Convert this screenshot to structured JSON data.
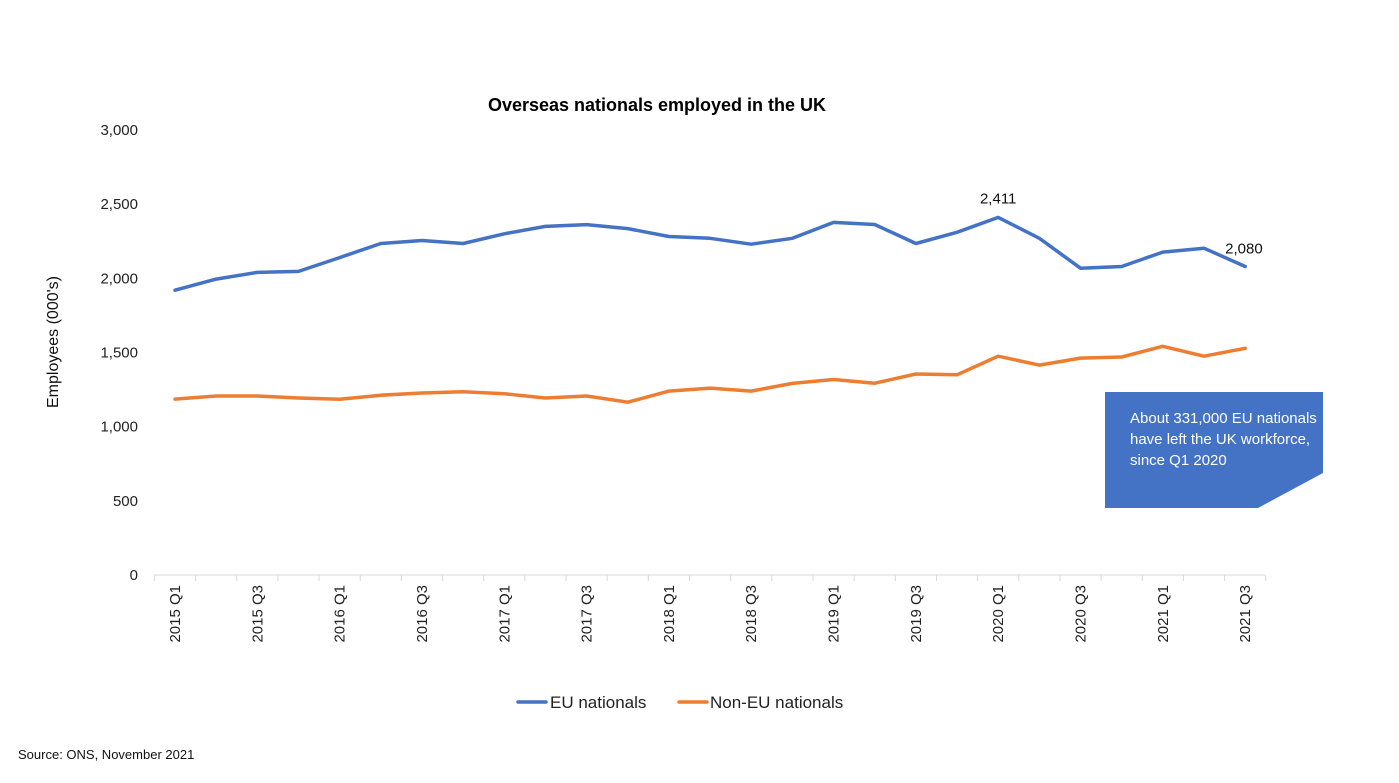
{
  "chart_data": {
    "type": "line",
    "title": "Overseas nationals employed in the UK",
    "ylabel": "Employees (000's)",
    "xlabel": "",
    "ylim": [
      0,
      3000
    ],
    "yticks": [
      0,
      500,
      1000,
      1500,
      2000,
      2500,
      3000
    ],
    "ytick_labels": [
      "0",
      "500",
      "1,000",
      "1,500",
      "2,000",
      "2,500",
      "3,000"
    ],
    "x_labels_shown": [
      "2015 Q1",
      "2015 Q3",
      "2016 Q1",
      "2016 Q3",
      "2017 Q1",
      "2017 Q3",
      "2018 Q1",
      "2018 Q3",
      "2019 Q1",
      "2019 Q3",
      "2020 Q1",
      "2020 Q3",
      "2021 Q1",
      "2021 Q3"
    ],
    "categories": [
      "2015 Q1",
      "2015 Q2",
      "2015 Q3",
      "2015 Q4",
      "2016 Q1",
      "2016 Q2",
      "2016 Q3",
      "2016 Q4",
      "2017 Q1",
      "2017 Q2",
      "2017 Q3",
      "2017 Q4",
      "2018 Q1",
      "2018 Q2",
      "2018 Q3",
      "2018 Q4",
      "2019 Q1",
      "2019 Q2",
      "2019 Q3",
      "2019 Q4",
      "2020 Q1",
      "2020 Q2",
      "2020 Q3",
      "2020 Q4",
      "2021 Q1",
      "2021 Q2",
      "2021 Q3"
    ],
    "grid": false,
    "legend_position": "bottom-center",
    "series": [
      {
        "name": "EU nationals",
        "color": "#4472c4",
        "values": [
          1920,
          1995,
          2040,
          2047,
          2140,
          2235,
          2255,
          2235,
          2300,
          2350,
          2362,
          2335,
          2282,
          2270,
          2230,
          2270,
          2377,
          2363,
          2235,
          2310,
          2411,
          2270,
          2068,
          2080,
          2177,
          2203,
          2080
        ]
      },
      {
        "name": "Non-EU nationals",
        "color": "#ed7d31",
        "values": [
          1186,
          1207,
          1207,
          1193,
          1185,
          1212,
          1227,
          1235,
          1222,
          1193,
          1207,
          1165,
          1240,
          1260,
          1240,
          1292,
          1318,
          1293,
          1355,
          1350,
          1475,
          1415,
          1462,
          1470,
          1542,
          1475,
          1528
        ]
      }
    ],
    "data_labels": [
      {
        "series": 0,
        "category": "2020 Q1",
        "text": "2,411"
      },
      {
        "series": 0,
        "category": "2021 Q3",
        "text": "2,080"
      }
    ],
    "annotations": [
      {
        "text": "About 331,000 EU nationals have left the UK workforce, since Q1 2020",
        "color": "#4472c4"
      }
    ],
    "source": "Source: ONS, November 2021"
  }
}
